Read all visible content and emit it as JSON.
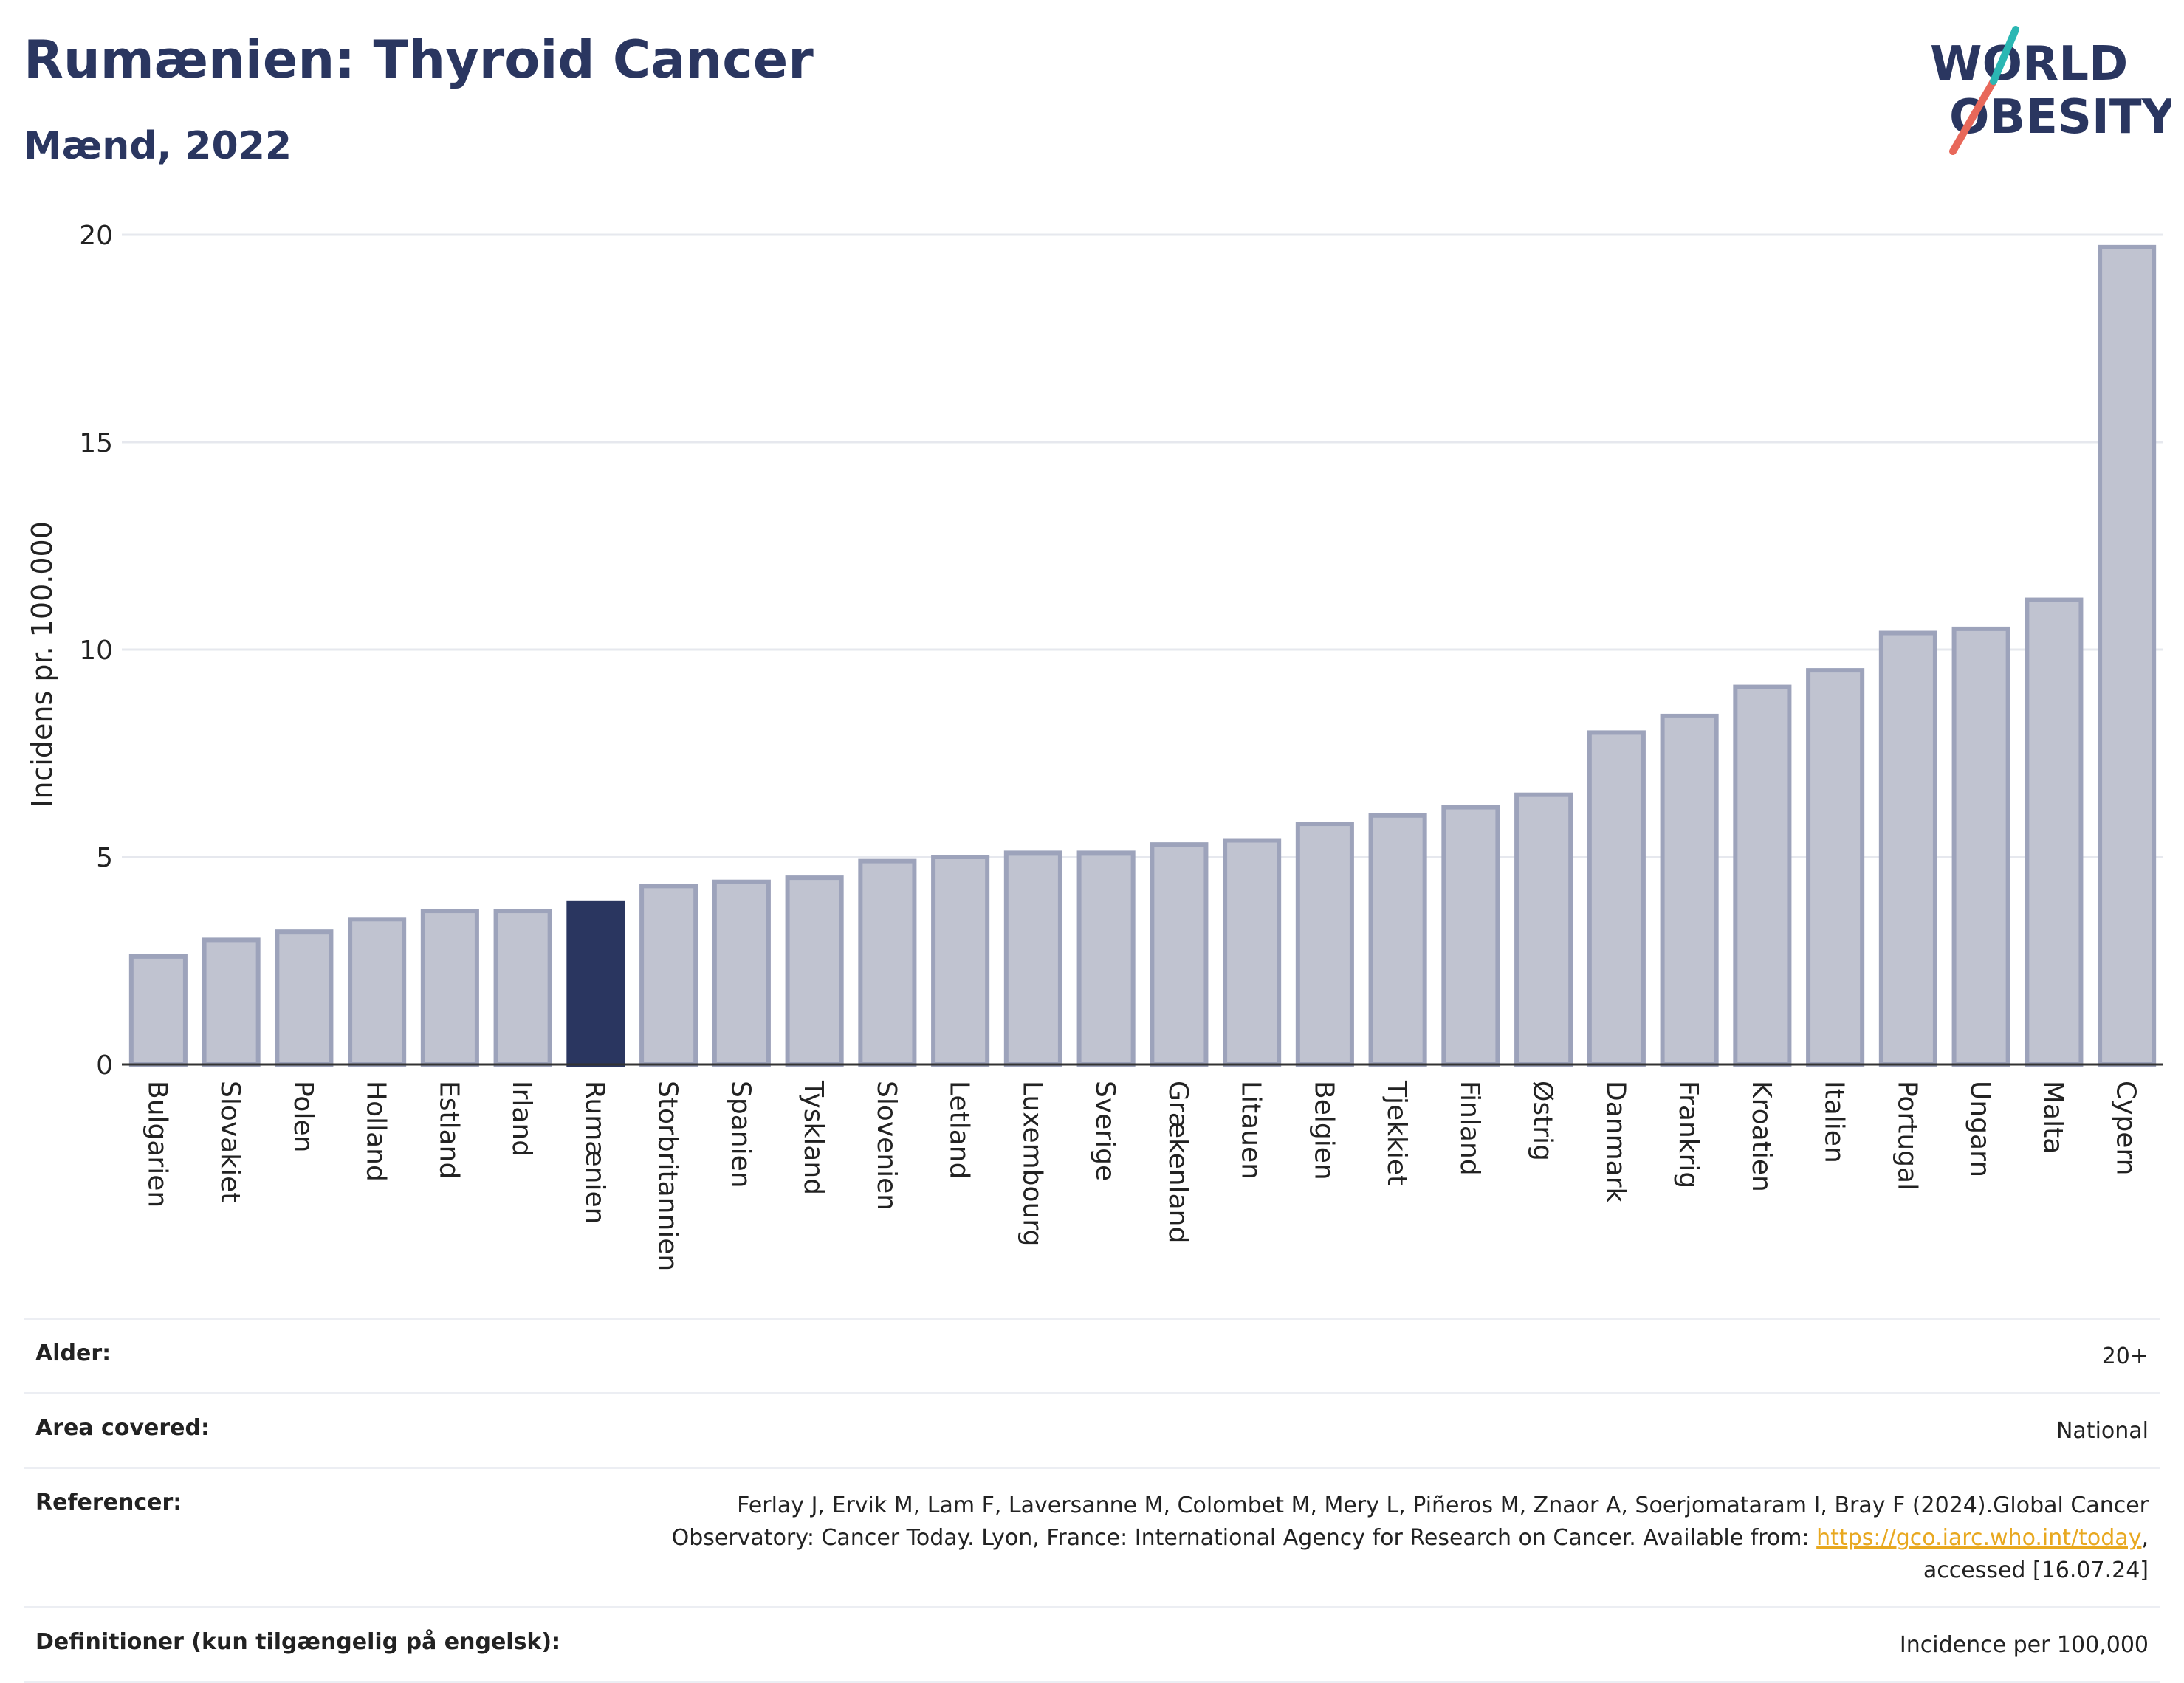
{
  "header": {
    "title": "Rumænien: Thyroid Cancer",
    "subtitle": "Mænd, 2022"
  },
  "logo": {
    "line1": "WORLD",
    "line2": "OBESITY",
    "colors": {
      "text": "#2a3660",
      "slash_red": "#e8685a",
      "slash_teal": "#2bb7b3"
    }
  },
  "chart_data": {
    "type": "bar",
    "title": "",
    "xlabel": "",
    "ylabel": "Incidens pr. 100.000",
    "ylim": [
      0,
      20
    ],
    "yticks": [
      0,
      5,
      10,
      15,
      20
    ],
    "grid": true,
    "highlight": "Rumænien",
    "colors": {
      "bar": "#c0c3d0",
      "bar_border": "#9da3bb",
      "highlight": "#2a3660",
      "grid": "#e6e8ee"
    },
    "categories": [
      "Bulgarien",
      "Slovakiet",
      "Polen",
      "Holland",
      "Estland",
      "Irland",
      "Rumænien",
      "Storbritannien",
      "Spanien",
      "Tyskland",
      "Slovenien",
      "Letland",
      "Luxembourg",
      "Sverige",
      "Grækenland",
      "Litauen",
      "Belgien",
      "Tjekkiet",
      "Finland",
      "Østrig",
      "Danmark",
      "Frankrig",
      "Kroatien",
      "Italien",
      "Portugal",
      "Ungarn",
      "Malta",
      "Cypern"
    ],
    "values": [
      2.6,
      3.0,
      3.2,
      3.5,
      3.7,
      3.7,
      3.9,
      4.3,
      4.4,
      4.5,
      4.9,
      5.0,
      5.1,
      5.1,
      5.3,
      5.4,
      5.8,
      6.0,
      6.2,
      6.5,
      8.0,
      8.4,
      9.1,
      9.5,
      10.4,
      10.5,
      11.2,
      19.7
    ]
  },
  "info_table": {
    "rows": [
      {
        "label": "Alder:",
        "value": "20+"
      },
      {
        "label": "Area covered:",
        "value": "National"
      },
      {
        "label": "Referencer:",
        "value_line1": "Ferlay J, Ervik M, Lam F, Laversanne M, Colombet M, Mery L, Piñeros M, Znaor A, Soerjomataram I, Bray F (2024).Global Cancer",
        "value_line2_prefix": "Observatory: Cancer Today. Lyon, France: International Agency for Research on Cancer. Available from: ",
        "link_text": "https://gco.iarc.who.int/today",
        "value_line2_suffix": ",",
        "value_line3": "accessed [16.07.24]"
      },
      {
        "label": "Definitioner (kun tilgængelig på engelsk):",
        "value": "Incidence per 100,000"
      }
    ]
  }
}
